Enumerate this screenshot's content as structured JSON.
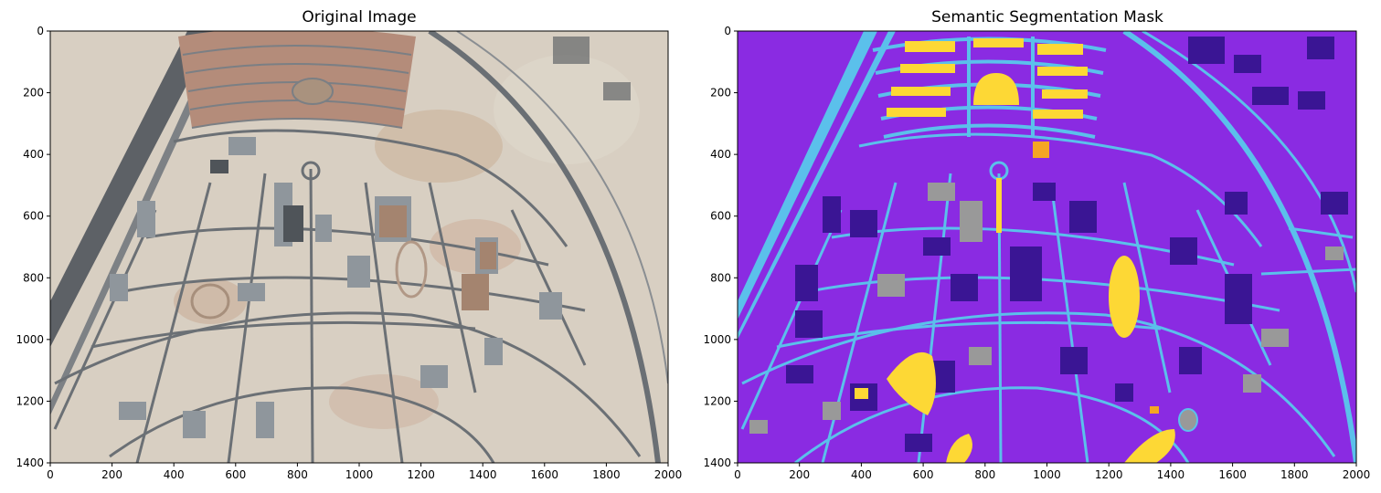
{
  "figure": {
    "panels": [
      {
        "title": "Original Image",
        "x_ticks": [
          "0",
          "200",
          "400",
          "600",
          "800",
          "1000",
          "1200",
          "1400",
          "1600",
          "1800",
          "2000"
        ],
        "y_ticks": [
          "0",
          "200",
          "400",
          "600",
          "800",
          "1000",
          "1200",
          "1400"
        ],
        "xlim": [
          0,
          2000
        ],
        "ylim": [
          1400,
          0
        ]
      },
      {
        "title": "Semantic Segmentation Mask",
        "x_ticks": [
          "0",
          "200",
          "400",
          "600",
          "800",
          "1000",
          "1200",
          "1400",
          "1600",
          "1800",
          "2000"
        ],
        "y_ticks": [
          "0",
          "200",
          "400",
          "600",
          "800",
          "1000",
          "1200",
          "1400"
        ],
        "xlim": [
          0,
          2000
        ],
        "ylim": [
          1400,
          0
        ]
      }
    ]
  },
  "colors": {
    "sand": "#d9d0c3",
    "sand_dark": "#c9b9a6",
    "road_photo": "#6e7378",
    "building_photo": "#b9bfc4",
    "mask_background": "#8a2be2",
    "mask_road": "#5bc0eb",
    "mask_building": "#3a1594",
    "mask_vegetation": "#fdd835",
    "mask_other": "#999999",
    "mask_orange": "#f5a623"
  }
}
